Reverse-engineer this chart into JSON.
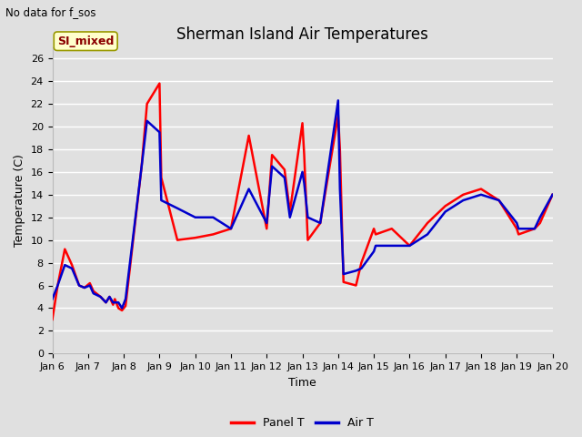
{
  "title": "Sherman Island Air Temperatures",
  "subtitle": "No data for f_sos",
  "xlabel": "Time",
  "ylabel": "Temperature (C)",
  "ylim": [
    0,
    27
  ],
  "xlim_days": [
    6,
    20
  ],
  "bg_color": "#e0e0e0",
  "grid_color": "#ffffff",
  "annotation_text": "SI_mixed",
  "annotation_bg": "#ffffcc",
  "annotation_border": "#999900",
  "annotation_text_color": "#8B0000",
  "panel_T_color": "#ff0000",
  "air_T_color": "#0000cc",
  "line_width": 1.8,
  "x_tick_labels": [
    "Jan 6",
    "Jan 7",
    "Jan 8",
    "Jan 9",
    "Jan 10",
    "Jan 11",
    "Jan 12",
    "Jan 13",
    "Jan 14",
    "Jan 15",
    "Jan 16",
    "Jan 17",
    "Jan 18",
    "Jan 19",
    "Jan 20"
  ],
  "panel_T_x": [
    6.0,
    6.15,
    6.35,
    6.55,
    6.75,
    6.9,
    7.05,
    7.15,
    7.35,
    7.5,
    7.6,
    7.7,
    7.75,
    7.85,
    7.95,
    8.05,
    8.5,
    8.65,
    9.0,
    9.05,
    9.5,
    10.0,
    10.5,
    11.0,
    11.5,
    12.0,
    12.15,
    12.5,
    12.65,
    13.0,
    13.05,
    13.15,
    13.5,
    14.0,
    14.05,
    14.15,
    14.5,
    14.65,
    15.0,
    15.05,
    15.5,
    16.0,
    16.5,
    17.0,
    17.5,
    18.0,
    18.5,
    19.0,
    19.05,
    19.5,
    19.65,
    20.0
  ],
  "panel_T_y": [
    3.0,
    6.0,
    9.2,
    7.8,
    6.0,
    5.8,
    6.2,
    5.5,
    5.0,
    4.5,
    5.0,
    4.3,
    4.8,
    4.0,
    3.8,
    4.2,
    16.5,
    22.0,
    23.8,
    15.5,
    10.0,
    10.2,
    10.5,
    11.0,
    19.2,
    11.0,
    17.5,
    16.2,
    12.5,
    20.3,
    17.5,
    10.0,
    11.5,
    21.0,
    18.0,
    6.3,
    6.0,
    8.0,
    11.0,
    10.5,
    11.0,
    9.5,
    11.5,
    13.0,
    14.0,
    14.5,
    13.5,
    11.0,
    10.5,
    11.0,
    11.5,
    14.0
  ],
  "air_T_x": [
    6.0,
    6.15,
    6.35,
    6.55,
    6.75,
    6.9,
    7.05,
    7.15,
    7.35,
    7.5,
    7.6,
    7.7,
    7.75,
    7.85,
    7.95,
    8.05,
    8.5,
    8.65,
    9.0,
    9.05,
    9.5,
    10.0,
    10.5,
    11.0,
    11.5,
    12.0,
    12.15,
    12.5,
    12.65,
    13.0,
    13.05,
    13.15,
    13.5,
    14.0,
    14.05,
    14.15,
    14.5,
    14.65,
    15.0,
    15.05,
    15.5,
    16.0,
    16.5,
    17.0,
    17.5,
    18.0,
    18.5,
    19.0,
    19.05,
    19.5,
    19.65,
    20.0
  ],
  "air_T_y": [
    4.8,
    6.0,
    7.8,
    7.5,
    6.0,
    5.8,
    6.0,
    5.3,
    5.0,
    4.5,
    5.0,
    4.5,
    4.5,
    4.5,
    4.0,
    4.8,
    16.5,
    20.5,
    19.5,
    13.5,
    12.8,
    12.0,
    12.0,
    11.0,
    14.5,
    11.5,
    16.5,
    15.5,
    12.0,
    16.0,
    15.0,
    12.0,
    11.5,
    22.3,
    14.5,
    7.0,
    7.3,
    7.5,
    9.0,
    9.5,
    9.5,
    9.5,
    10.5,
    12.5,
    13.5,
    14.0,
    13.5,
    11.5,
    11.0,
    11.0,
    12.0,
    14.0
  ],
  "yticks": [
    0,
    2,
    4,
    6,
    8,
    10,
    12,
    14,
    16,
    18,
    20,
    22,
    24,
    26
  ],
  "title_fontsize": 12,
  "tick_fontsize": 8,
  "axis_label_fontsize": 9
}
